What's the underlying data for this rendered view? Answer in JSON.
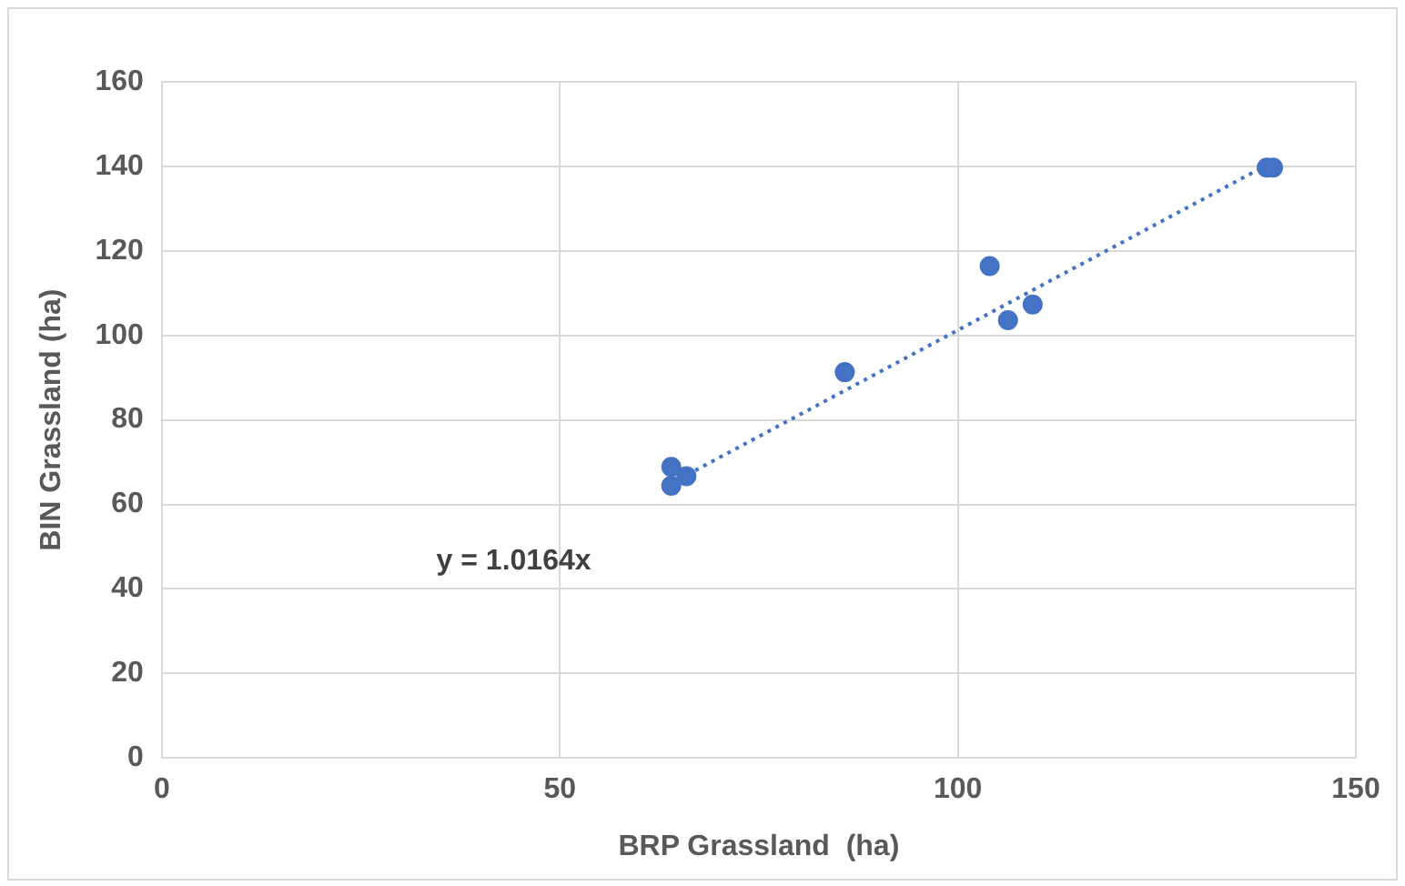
{
  "chart_data": {
    "type": "scatter",
    "xlabel": "BRP Grassland  (ha)",
    "ylabel": "BIN Grassland (ha)",
    "xlim": [
      0,
      150
    ],
    "xticks": [
      0,
      50,
      100,
      150
    ],
    "ylim": [
      0,
      160
    ],
    "yticks": [
      0,
      20,
      40,
      60,
      80,
      100,
      120,
      140,
      160
    ],
    "grid": true,
    "legend": false,
    "marker": "circle",
    "series": [
      {
        "color": "#4472c4",
        "x": [
          64.0,
          64.0,
          65.9,
          85.8,
          104.0,
          106.3,
          109.4,
          138.8,
          139.6
        ],
        "values": [
          68.9,
          64.4,
          66.7,
          91.3,
          116.4,
          103.6,
          107.3,
          139.7,
          139.7
        ]
      },
      {
        "type": "line",
        "color": "#4472c4",
        "line_style": "dotted",
        "marker": "none",
        "x": [
          64,
          139.5
        ],
        "values": [
          65,
          141
        ]
      }
    ],
    "annotations": [
      "y = 1.0164x"
    ]
  }
}
